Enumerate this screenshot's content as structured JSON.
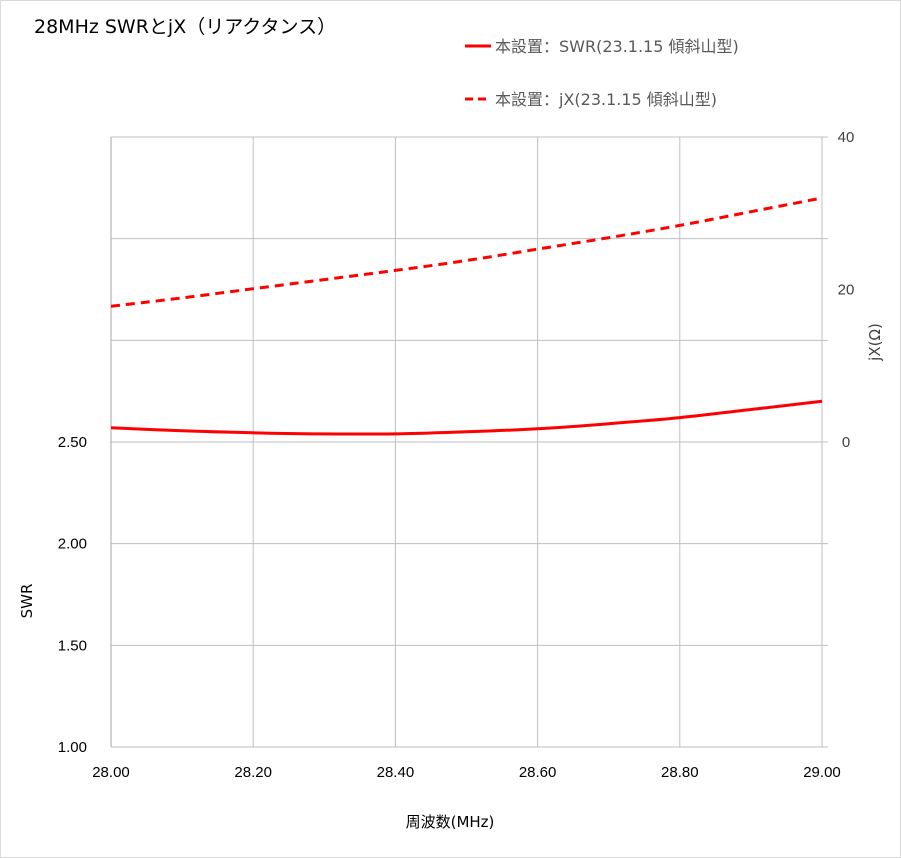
{
  "chart_data": {
    "type": "line",
    "title": "28MHz SWRとjX（リアクタンス）",
    "xlabel": "周波数(MHz)",
    "ylabel": "SWR",
    "y2label": "jX(Ω)",
    "xlim": [
      28.0,
      29.0
    ],
    "ylim": [
      1.0,
      4.0
    ],
    "y2lim": [
      -40,
      40
    ],
    "grid": true,
    "legend_position": "top-right",
    "x_ticks": [
      "28.00",
      "28.20",
      "28.40",
      "28.60",
      "28.80",
      "29.00"
    ],
    "y_ticks": [
      "1.00",
      "1.50",
      "2.00",
      "2.50"
    ],
    "y2_ticks": [
      "0",
      "20",
      "40"
    ],
    "series": [
      {
        "name": "本設置：SWR(23.1.15 傾斜山型)",
        "axis": "left",
        "style": "solid",
        "color": "#ff0000",
        "x": [
          28.0,
          28.1,
          28.2,
          28.3,
          28.4,
          28.5,
          28.6,
          28.7,
          28.8,
          28.9,
          29.0
        ],
        "y": [
          2.57,
          2.555,
          2.545,
          2.54,
          2.54,
          2.55,
          2.565,
          2.59,
          2.62,
          2.66,
          2.7
        ]
      },
      {
        "name": "本設置：jX(23.1.15 傾斜山型)",
        "axis": "right",
        "style": "dashed",
        "color": "#ff0000",
        "x": [
          28.0,
          28.1,
          28.2,
          28.3,
          28.4,
          28.5,
          28.6,
          28.7,
          28.8,
          28.9,
          29.0
        ],
        "y": [
          17.8,
          18.9,
          20.1,
          21.3,
          22.5,
          23.8,
          25.3,
          26.8,
          28.4,
          30.2,
          32.0
        ]
      }
    ]
  }
}
